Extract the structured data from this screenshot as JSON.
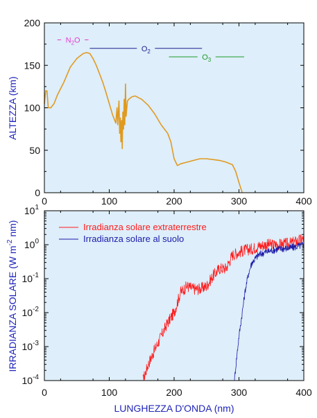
{
  "colors": {
    "panel_background": "#deeefa",
    "axis_label": "#1f24b8",
    "altitude_curve": "#e09a20",
    "n2o": "#e23ccf",
    "o2": "#1a1f8c",
    "o3": "#1e9a2a",
    "extraterrestrial": "#ff1a1a",
    "ground": "#1a1aa8"
  },
  "chart_data": [
    {
      "type": "line",
      "ylabel": "ALTEZZA (km)",
      "xlim": [
        0,
        400
      ],
      "ylim": [
        0,
        200
      ],
      "x_ticks": [
        "0",
        "100",
        "200",
        "300",
        "400"
      ],
      "y_ticks": [
        "0",
        "50",
        "100",
        "150",
        "200"
      ],
      "grid": false,
      "series": [
        {
          "x": [
            0,
            2,
            4,
            6,
            10,
            15,
            20,
            30,
            40,
            50,
            60,
            65,
            70,
            75,
            80,
            85,
            90,
            95,
            100,
            105,
            110,
            112,
            113,
            114,
            115,
            116,
            117,
            118,
            119,
            120,
            121,
            122,
            123,
            124,
            125,
            126,
            128,
            130,
            135,
            140,
            150,
            160,
            170,
            180,
            190,
            195,
            200,
            205,
            210,
            220,
            230,
            240,
            250,
            260,
            270,
            280,
            290,
            295,
            300,
            305
          ],
          "y": [
            105,
            120,
            120,
            100,
            100,
            105,
            115,
            130,
            148,
            158,
            164,
            165,
            164,
            158,
            150,
            140,
            130,
            118,
            105,
            92,
            82,
            100,
            80,
            95,
            108,
            70,
            88,
            60,
            85,
            52,
            95,
            75,
            110,
            80,
            128,
            90,
            108,
            110,
            113,
            114,
            110,
            103,
            93,
            80,
            70,
            60,
            40,
            32,
            34,
            36,
            38,
            40,
            40,
            39,
            38,
            36,
            33,
            25,
            12,
            0
          ]
        }
      ],
      "annotations": [
        {
          "label": "N",
          "sub": "2",
          "label2": "O",
          "x_range": [
            20,
            68
          ],
          "y": 180
        },
        {
          "label": "O",
          "sub": "2",
          "x_range": [
            70,
            243
          ],
          "y": 170
        },
        {
          "label": "O",
          "sub": "3",
          "x_range": [
            192,
            308
          ],
          "y": 160
        }
      ]
    },
    {
      "type": "line",
      "ylabel": "IRRADIANZA SOLARE (W m-2 nm)",
      "xlabel": "LUNGHEZZA D'ONDA (nm)",
      "yscale": "log",
      "xlim": [
        0,
        400
      ],
      "ylim": [
        0.0001,
        10
      ],
      "x_ticks": [
        "0",
        "100",
        "200",
        "300",
        "400"
      ],
      "y_tick_exponents": [
        "-4",
        "-3",
        "-2",
        "-1",
        "0",
        "1"
      ],
      "legend_position": "top-left",
      "series": [
        {
          "name": "Irradianza solare extraterrestre",
          "x": [
            152,
            160,
            170,
            180,
            190,
            200,
            205,
            210,
            220,
            230,
            240,
            250,
            260,
            270,
            280,
            290,
            300,
            310,
            320,
            330,
            340,
            360,
            380,
            400
          ],
          "y": [
            0.0001,
            0.0003,
            0.0008,
            0.002,
            0.005,
            0.01,
            0.02,
            0.04,
            0.06,
            0.05,
            0.05,
            0.06,
            0.12,
            0.2,
            0.2,
            0.5,
            0.6,
            0.7,
            0.75,
            0.9,
            1.0,
            1.0,
            1.1,
            1.5
          ]
        },
        {
          "name": "Irradianza solare al suolo",
          "x": [
            293,
            296,
            300,
            305,
            310,
            315,
            320,
            330,
            340,
            360,
            380,
            400
          ],
          "y": [
            0.0001,
            0.0004,
            0.002,
            0.01,
            0.05,
            0.15,
            0.3,
            0.5,
            0.6,
            0.75,
            0.8,
            1.0
          ]
        }
      ]
    }
  ]
}
